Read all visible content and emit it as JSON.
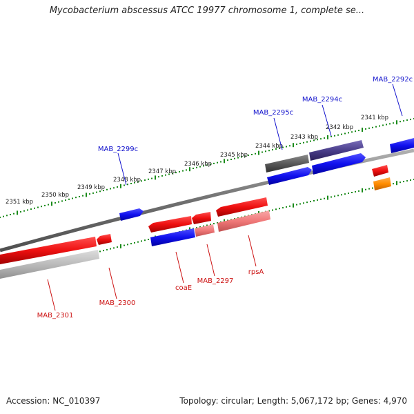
{
  "title": "Mycobacterium abscessus ATCC 19977 chromosome 1, complete se...",
  "footer": {
    "accession": "Accession: NC_010397",
    "summary": "Topology: circular; Length: 5,067,172 bp; Genes: 4,970"
  },
  "map": {
    "ticks_kbp": [
      2351,
      2350,
      2349,
      2348,
      2347,
      2346,
      2345,
      2344,
      2343,
      2342,
      2341
    ],
    "tick_unit": "kbp",
    "genes": [
      {
        "label": "MAB_2292c",
        "strand": "+",
        "color": "#1010ee"
      },
      {
        "label": "MAB_2294c",
        "strand": "+",
        "color": "#4a3e8a"
      },
      {
        "label": "MAB_2295c",
        "strand": "+",
        "color": "#5a5a5a"
      },
      {
        "label": "MAB_2299c",
        "strand": "+",
        "color": "#1010ee"
      },
      {
        "label": "rpsA",
        "strand": "-",
        "color": "#ee1010"
      },
      {
        "label": "MAB_2297",
        "strand": "-",
        "color": "#ee1010"
      },
      {
        "label": "coaE",
        "strand": "-",
        "color": "#ee1010"
      },
      {
        "label": "MAB_2300",
        "strand": "-",
        "color": "#ee1010"
      },
      {
        "label": "MAB_2301",
        "strand": "-",
        "color": "#ee1010"
      }
    ],
    "colors": {
      "backbone": "#808080",
      "tick": "#1a8a1a",
      "plus_label": "#1010cc",
      "minus_label": "#cc1010",
      "red": "#ee1010",
      "blue": "#1010ee",
      "pink": "#f07878",
      "grey": "#bbbbbb",
      "dark_grey": "#5a5a5a",
      "orange": "#ff8c00",
      "purple": "#4a3e8a"
    }
  }
}
